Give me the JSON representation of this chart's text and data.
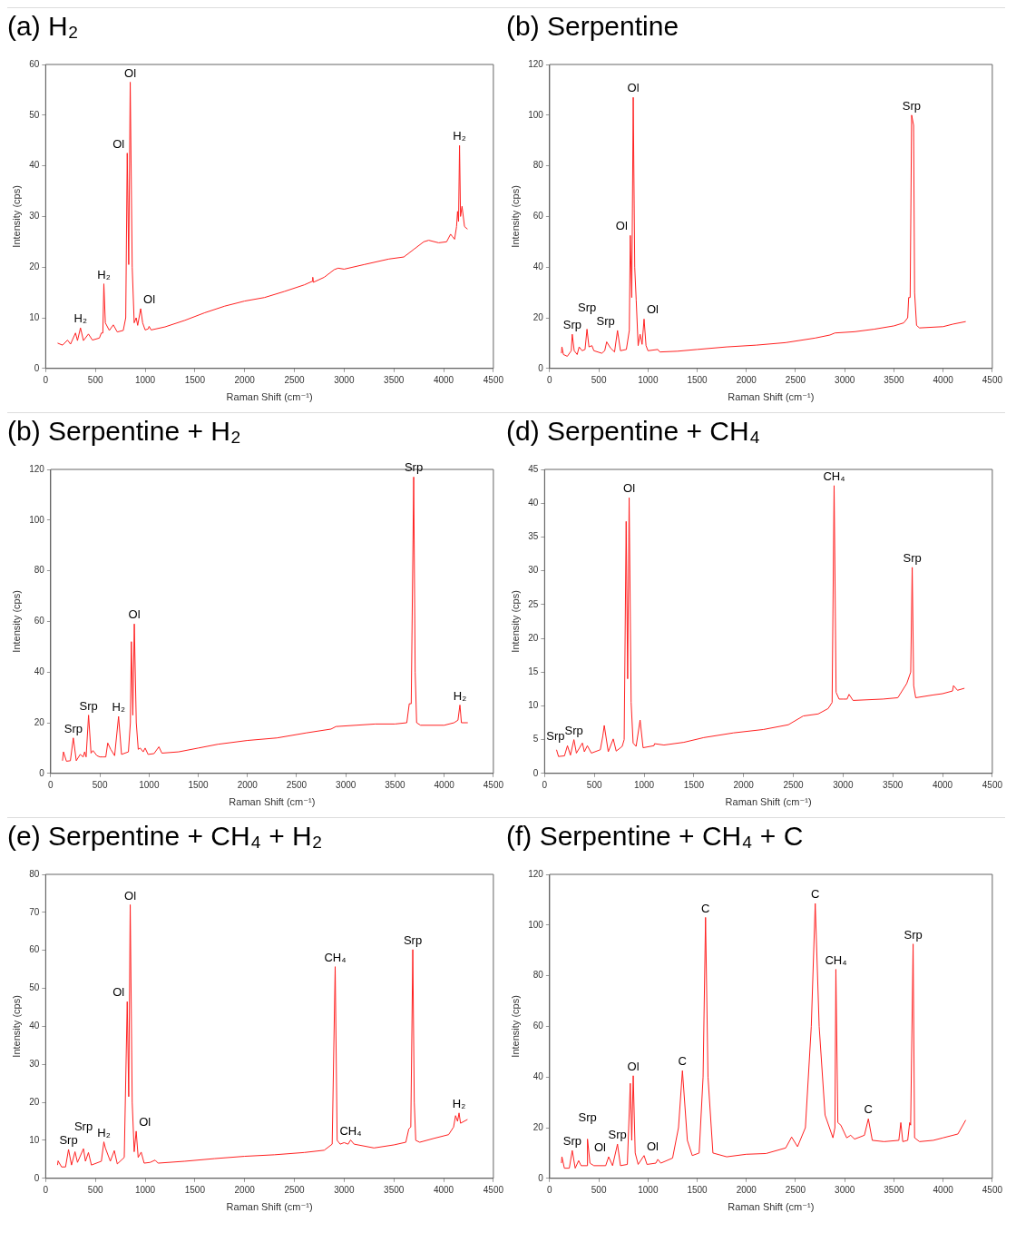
{
  "chart_data": [
    {
      "type": "line",
      "title": "(a) H₂",
      "xlabel": "Raman Shift (cm⁻¹)",
      "ylabel": "Intensity (cps)",
      "color": "#ff2020",
      "marker": "none",
      "grid": false,
      "xlim": [
        0,
        4500
      ],
      "xticks": [
        0,
        500,
        1000,
        1500,
        2000,
        2500,
        3000,
        3500,
        4000,
        4500
      ],
      "ylim": [
        0,
        60
      ],
      "yticks": [
        0,
        10,
        20,
        30,
        40,
        50,
        60
      ],
      "x": [
        120,
        170,
        220,
        250,
        300,
        320,
        350,
        380,
        430,
        470,
        540,
        560,
        575,
        585,
        600,
        640,
        680,
        720,
        780,
        805,
        820,
        835,
        850,
        870,
        890,
        910,
        925,
        955,
        975,
        1000,
        1030,
        1040,
        1060,
        1200,
        1400,
        1600,
        1800,
        2000,
        2200,
        2400,
        2600,
        2680,
        2685,
        2690,
        2800,
        2900,
        2940,
        3000,
        3200,
        3450,
        3600,
        3700,
        3800,
        3850,
        3950,
        4030,
        4070,
        4090,
        4110,
        4130,
        4140,
        4150,
        4160,
        4170,
        4185,
        4210,
        4240
      ],
      "values": [
        5,
        4.6,
        5.6,
        4.8,
        7,
        5.5,
        8,
        5.5,
        6.8,
        5.6,
        6,
        7,
        7,
        16.7,
        9,
        7.5,
        8.6,
        7.2,
        7.5,
        10,
        42.5,
        20.5,
        56.5,
        20,
        9,
        10,
        8.5,
        11.8,
        9,
        7.6,
        7.8,
        8.3,
        7.6,
        8.2,
        9.5,
        11,
        12.3,
        13.3,
        14,
        15.2,
        16.5,
        17.2,
        18,
        17,
        18,
        19.5,
        19.8,
        19.6,
        20.5,
        21.6,
        22,
        23.5,
        25,
        25.3,
        24.8,
        25,
        26.5,
        26,
        25.5,
        28,
        31,
        29,
        44,
        30,
        32,
        28,
        27.5
      ],
      "annotations": [
        {
          "text": "H₂",
          "x": 350,
          "y": 8
        },
        {
          "text": "H₂",
          "x": 585,
          "y": 16.7
        },
        {
          "text": "Ol",
          "x": 820,
          "y": 42.5
        },
        {
          "text": "Ol",
          "x": 850,
          "y": 56.5
        },
        {
          "text": "Ol",
          "x": 955,
          "y": 11.8
        },
        {
          "text": "H₂",
          "x": 4160,
          "y": 44
        }
      ]
    },
    {
      "type": "line",
      "title": "(b) Serpentine",
      "xlabel": "Raman Shift (cm⁻¹)",
      "ylabel": "Intensity (cps)",
      "color": "#ff2020",
      "marker": "none",
      "grid": false,
      "xlim": [
        0,
        4500
      ],
      "xticks": [
        0,
        500,
        1000,
        1500,
        2000,
        2500,
        3000,
        3500,
        4000,
        4500
      ],
      "ylim": [
        0,
        120
      ],
      "yticks": [
        0,
        20,
        40,
        60,
        80,
        100,
        120
      ],
      "x": [
        120,
        125,
        140,
        180,
        220,
        230,
        250,
        280,
        300,
        330,
        360,
        380,
        400,
        430,
        450,
        530,
        560,
        580,
        620,
        660,
        690,
        720,
        780,
        810,
        820,
        835,
        850,
        865,
        880,
        900,
        920,
        940,
        960,
        980,
        1000,
        1100,
        1120,
        1300,
        1500,
        1800,
        2100,
        2400,
        2700,
        2850,
        2900,
        3100,
        3300,
        3500,
        3600,
        3640,
        3650,
        3665,
        3680,
        3700,
        3710,
        3730,
        3760,
        4000,
        4100,
        4230
      ],
      "values": [
        6,
        8.5,
        5.5,
        4.8,
        7,
        13.5,
        7,
        5.5,
        8.5,
        7,
        7.5,
        15.5,
        8.5,
        9,
        7,
        6,
        7,
        10.5,
        8,
        6.5,
        15,
        7,
        7.5,
        15,
        52.5,
        28,
        107,
        40,
        27,
        9,
        13.5,
        9.5,
        19.5,
        9,
        7,
        7.5,
        6.5,
        6.8,
        7.5,
        8.5,
        9.2,
        10.2,
        12,
        13.2,
        14,
        14.5,
        15.5,
        16.8,
        18,
        20,
        28,
        28,
        100,
        96,
        30,
        17,
        16,
        16.5,
        17.5,
        18.5
      ],
      "annotations": [
        {
          "text": "Srp",
          "x": 230,
          "y": 13.5
        },
        {
          "text": "Srp",
          "x": 380,
          "y": 15.5
        },
        {
          "text": "Srp",
          "x": 690,
          "y": 15
        },
        {
          "text": "Ol",
          "x": 820,
          "y": 52.5
        },
        {
          "text": "Ol",
          "x": 850,
          "y": 107
        },
        {
          "text": "Ol",
          "x": 960,
          "y": 19.5
        },
        {
          "text": "Srp",
          "x": 3680,
          "y": 100
        }
      ]
    },
    {
      "type": "line",
      "title": "(b) Serpentine + H₂",
      "xlabel": "Raman Shift (cm⁻¹)",
      "ylabel": "Intensity (cps)",
      "color": "#ff2020",
      "marker": "none",
      "grid": false,
      "xlim": [
        0,
        4500
      ],
      "xticks": [
        0,
        500,
        1000,
        1500,
        2000,
        2500,
        3000,
        3500,
        4000,
        4500
      ],
      "ylim": [
        0,
        120
      ],
      "yticks": [
        0,
        20,
        40,
        60,
        80,
        100,
        120
      ],
      "x": [
        120,
        130,
        160,
        200,
        230,
        260,
        300,
        330,
        345,
        360,
        385,
        410,
        430,
        470,
        500,
        530,
        560,
        580,
        610,
        650,
        690,
        720,
        790,
        810,
        820,
        835,
        850,
        870,
        890,
        910,
        940,
        960,
        990,
        1050,
        1100,
        1130,
        1300,
        1500,
        1700,
        2000,
        2300,
        2600,
        2850,
        2900,
        3100,
        3300,
        3500,
        3620,
        3645,
        3665,
        3690,
        3705,
        3720,
        3760,
        4000,
        4100,
        4140,
        4160,
        4175,
        4240
      ],
      "values": [
        5,
        8.5,
        4.8,
        5,
        14,
        5,
        7.5,
        6.5,
        8.5,
        6.5,
        23,
        8,
        9,
        7,
        6.5,
        6.5,
        6.5,
        12,
        9.5,
        7,
        22.5,
        7.5,
        8.5,
        20,
        52,
        23,
        59,
        20,
        9.5,
        10,
        8.5,
        10,
        7.5,
        7.8,
        10.5,
        8,
        8.5,
        10,
        11.5,
        13,
        14,
        16,
        17.5,
        18.5,
        19,
        19.5,
        19.5,
        20,
        27.5,
        27.5,
        117,
        40,
        20,
        19,
        19,
        20,
        21,
        27,
        20,
        20
      ],
      "annotations": [
        {
          "text": "Srp",
          "x": 230,
          "y": 14
        },
        {
          "text": "Srp",
          "x": 385,
          "y": 23
        },
        {
          "text": "H₂",
          "x": 690,
          "y": 22.5
        },
        {
          "text": "Ol",
          "x": 850,
          "y": 59
        },
        {
          "text": "Srp",
          "x": 3690,
          "y": 117
        },
        {
          "text": "H₂",
          "x": 4160,
          "y": 27
        }
      ]
    },
    {
      "type": "line",
      "title": "(d) Serpentine + CH₄",
      "xlabel": "Raman Shift (cm⁻¹)",
      "ylabel": "Intensity (cps)",
      "color": "#ff2020",
      "marker": "none",
      "grid": false,
      "xlim": [
        0,
        4500
      ],
      "xticks": [
        0,
        500,
        1000,
        1500,
        2000,
        2500,
        3000,
        3500,
        4000,
        4500
      ],
      "ylim": [
        0,
        45
      ],
      "yticks": [
        0,
        5,
        10,
        15,
        20,
        25,
        30,
        35,
        40,
        45
      ],
      "x": [
        120,
        140,
        200,
        230,
        260,
        295,
        320,
        380,
        400,
        430,
        470,
        560,
        585,
        600,
        640,
        690,
        720,
        780,
        800,
        820,
        835,
        850,
        870,
        890,
        920,
        960,
        990,
        1100,
        1105,
        1200,
        1400,
        1600,
        1900,
        2200,
        2450,
        2600,
        2750,
        2850,
        2890,
        2910,
        2930,
        2960,
        3000,
        3040,
        3060,
        3100,
        3400,
        3550,
        3640,
        3680,
        3695,
        3710,
        3730,
        3900,
        4000,
        4100,
        4110,
        4150,
        4220
      ],
      "values": [
        3.5,
        2.5,
        2.6,
        4.1,
        2.7,
        5,
        3,
        4.5,
        3.2,
        4.1,
        3,
        3.5,
        5.5,
        7.1,
        3.2,
        5.1,
        3.3,
        4,
        5,
        37.3,
        14,
        40.8,
        10.5,
        4.5,
        4,
        7.9,
        3.8,
        4.1,
        4.4,
        4.2,
        4.6,
        5.3,
        6,
        6.5,
        7.2,
        8.5,
        8.8,
        9.6,
        10.5,
        42.6,
        12,
        11,
        11,
        11,
        11.7,
        10.8,
        11,
        11.2,
        13.3,
        15,
        30.5,
        13,
        11.2,
        11.6,
        11.8,
        12.2,
        13,
        12.3,
        12.6
      ],
      "annotations": [
        {
          "text": "Srp",
          "x": 230,
          "y": 4.1
        },
        {
          "text": "Srp",
          "x": 295,
          "y": 5
        },
        {
          "text": "Ol",
          "x": 850,
          "y": 40.8
        },
        {
          "text": "CH₄",
          "x": 2910,
          "y": 42.6
        },
        {
          "text": "Srp",
          "x": 3695,
          "y": 30.5
        }
      ]
    },
    {
      "type": "line",
      "title": "(e) Serpentine + CH₄ + H₂",
      "xlabel": "Raman Shift (cm⁻¹)",
      "ylabel": "Intensity (cps)",
      "color": "#ff2020",
      "marker": "none",
      "grid": false,
      "xlim": [
        0,
        4500
      ],
      "xticks": [
        0,
        500,
        1000,
        1500,
        2000,
        2500,
        3000,
        3500,
        4000,
        4500
      ],
      "ylim": [
        0,
        80
      ],
      "yticks": [
        0,
        10,
        20,
        30,
        40,
        50,
        60,
        70,
        80
      ],
      "x": [
        120,
        125,
        160,
        200,
        230,
        260,
        295,
        320,
        380,
        400,
        430,
        460,
        560,
        585,
        600,
        650,
        690,
        720,
        790,
        820,
        835,
        850,
        870,
        890,
        910,
        930,
        960,
        990,
        1050,
        1100,
        1130,
        1400,
        1700,
        2000,
        2300,
        2600,
        2800,
        2880,
        2910,
        2930,
        2960,
        3000,
        3040,
        3065,
        3100,
        3300,
        3500,
        3620,
        3650,
        3670,
        3690,
        3705,
        3720,
        3760,
        3900,
        4050,
        4100,
        4120,
        4140,
        4155,
        4170,
        4240
      ],
      "values": [
        3.5,
        4.6,
        3,
        3,
        7.6,
        3.5,
        7,
        4.2,
        7.8,
        4.5,
        6.8,
        3.5,
        4.5,
        9.6,
        8,
        4.5,
        7.3,
        3.8,
        5.5,
        46.5,
        21.5,
        72,
        20,
        7,
        12.4,
        5.5,
        6.9,
        4,
        4.2,
        4.8,
        4,
        4.5,
        5.2,
        5.8,
        6.2,
        6.8,
        7.4,
        9,
        55.7,
        10,
        9,
        9.4,
        9,
        10.1,
        9,
        8,
        8.8,
        9.5,
        13,
        13.5,
        60.2,
        20,
        10,
        9.5,
        10.5,
        11.5,
        13.5,
        16.5,
        15,
        17.2,
        14.5,
        15.5
      ],
      "annotations": [
        {
          "text": "Srp",
          "x": 230,
          "y": 7.6
        },
        {
          "text": "Srp",
          "x": 380,
          "y": 7.8
        },
        {
          "text": "H₂",
          "x": 585,
          "y": 9.6
        },
        {
          "text": "Ol",
          "x": 820,
          "y": 46.5
        },
        {
          "text": "Ol",
          "x": 850,
          "y": 72
        },
        {
          "text": "Ol",
          "x": 910,
          "y": 12.4
        },
        {
          "text": "CH₄",
          "x": 2910,
          "y": 55.7
        },
        {
          "text": "CH₄",
          "x": 3065,
          "y": 10.1
        },
        {
          "text": "Srp",
          "x": 3690,
          "y": 60.2
        },
        {
          "text": "H₂",
          "x": 4155,
          "y": 17.2
        }
      ]
    },
    {
      "type": "line",
      "title": "(f) Serpentine + CH₄ + C",
      "xlabel": "Raman Shift (cm⁻¹)",
      "ylabel": "Intensity (cps)",
      "color": "#ff2020",
      "marker": "none",
      "grid": false,
      "xlim": [
        0,
        4500
      ],
      "xticks": [
        0,
        500,
        1000,
        1500,
        2000,
        2500,
        3000,
        3500,
        4000,
        4500
      ],
      "ylim": [
        0,
        120
      ],
      "yticks": [
        0,
        20,
        40,
        60,
        80,
        100,
        120
      ],
      "x": [
        120,
        125,
        150,
        200,
        230,
        260,
        295,
        320,
        380,
        385,
        410,
        450,
        570,
        600,
        640,
        690,
        720,
        790,
        820,
        835,
        850,
        870,
        900,
        960,
        990,
        1080,
        1100,
        1130,
        1250,
        1310,
        1350,
        1400,
        1450,
        1520,
        1560,
        1585,
        1610,
        1660,
        1800,
        2000,
        2200,
        2400,
        2460,
        2520,
        2600,
        2660,
        2700,
        2740,
        2800,
        2880,
        2900,
        2910,
        2930,
        2960,
        3020,
        3060,
        3100,
        3200,
        3240,
        3280,
        3400,
        3550,
        3570,
        3590,
        3640,
        3660,
        3670,
        3695,
        3710,
        3760,
        3900,
        4000,
        4150,
        4230
      ],
      "values": [
        6,
        8.5,
        4,
        4,
        11,
        4,
        7,
        5,
        5,
        15.5,
        6,
        5,
        5,
        8.5,
        5,
        13.5,
        5,
        5.5,
        37.5,
        15,
        40.5,
        10,
        5.5,
        9,
        5.5,
        6,
        7.5,
        6,
        8,
        20,
        42.5,
        15,
        9,
        10,
        40,
        103,
        40,
        10,
        8.5,
        9.5,
        9.8,
        12,
        16.3,
        12.5,
        20,
        60,
        108.5,
        60,
        25,
        16,
        20,
        82.5,
        22,
        21,
        16,
        17,
        15.5,
        17,
        23.5,
        15,
        14.5,
        15,
        22,
        14.5,
        15,
        22,
        21,
        92.5,
        16,
        14.5,
        15,
        16,
        17.5,
        23
      ],
      "annotations": [
        {
          "text": "Srp",
          "x": 230,
          "y": 11
        },
        {
          "text": "Srp",
          "x": 385,
          "y": 15.5
        },
        {
          "text": "Ol",
          "x": 600,
          "y": 8.5
        },
        {
          "text": "Srp",
          "x": 690,
          "y": 13.5
        },
        {
          "text": "Ol",
          "x": 850,
          "y": 40.5
        },
        {
          "text": "Ol",
          "x": 960,
          "y": 9
        },
        {
          "text": "C",
          "x": 1350,
          "y": 42.5
        },
        {
          "text": "C",
          "x": 1585,
          "y": 103
        },
        {
          "text": "C",
          "x": 2700,
          "y": 108.5
        },
        {
          "text": "CH₄",
          "x": 2910,
          "y": 82.5
        },
        {
          "text": "C",
          "x": 3240,
          "y": 23.5
        },
        {
          "text": "Srp",
          "x": 3695,
          "y": 92.5
        }
      ]
    }
  ]
}
